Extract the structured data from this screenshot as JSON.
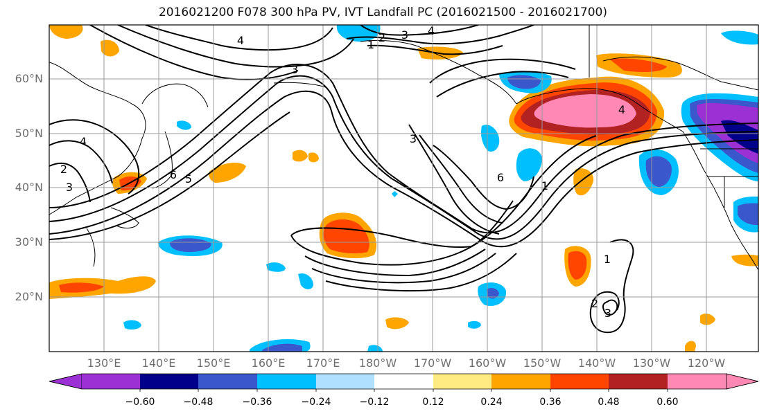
{
  "title": "2016021200 F078 300 hPa PV, IVT Landfall PC (2016021500 - 2016021700)",
  "lat_labels": [
    "60°N",
    "50°N",
    "40°N",
    "30°N",
    "20°N"
  ],
  "lon_labels": [
    "130°E",
    "140°E",
    "150°E",
    "160°E",
    "170°E",
    "180°W",
    "170°W",
    "160°W",
    "150°W",
    "140°W",
    "130°W",
    "120°W"
  ],
  "contour_labels": [
    "4",
    "4",
    "1",
    "2",
    "3",
    "3",
    "4",
    "6",
    "5",
    "3",
    "2",
    "3",
    "6",
    "1",
    "4",
    "1",
    "2",
    "3"
  ],
  "colorbar": {
    "tick_labels": [
      "−0.60",
      "−0.48",
      "−0.36",
      "−0.24",
      "−0.12",
      "0.12",
      "0.24",
      "0.36",
      "0.48",
      "0.60"
    ],
    "colors": [
      "#9b30d4",
      "#00008b",
      "#3a58cc",
      "#00bfff",
      "#b0e0ff",
      "#ffffff",
      "#ffeb82",
      "#ffa500",
      "#ff4500",
      "#b22222",
      "#ff88b4"
    ]
  },
  "colors": {
    "land_outline": "#000000",
    "grid": "#9a9a9a",
    "contour": "#000000"
  }
}
